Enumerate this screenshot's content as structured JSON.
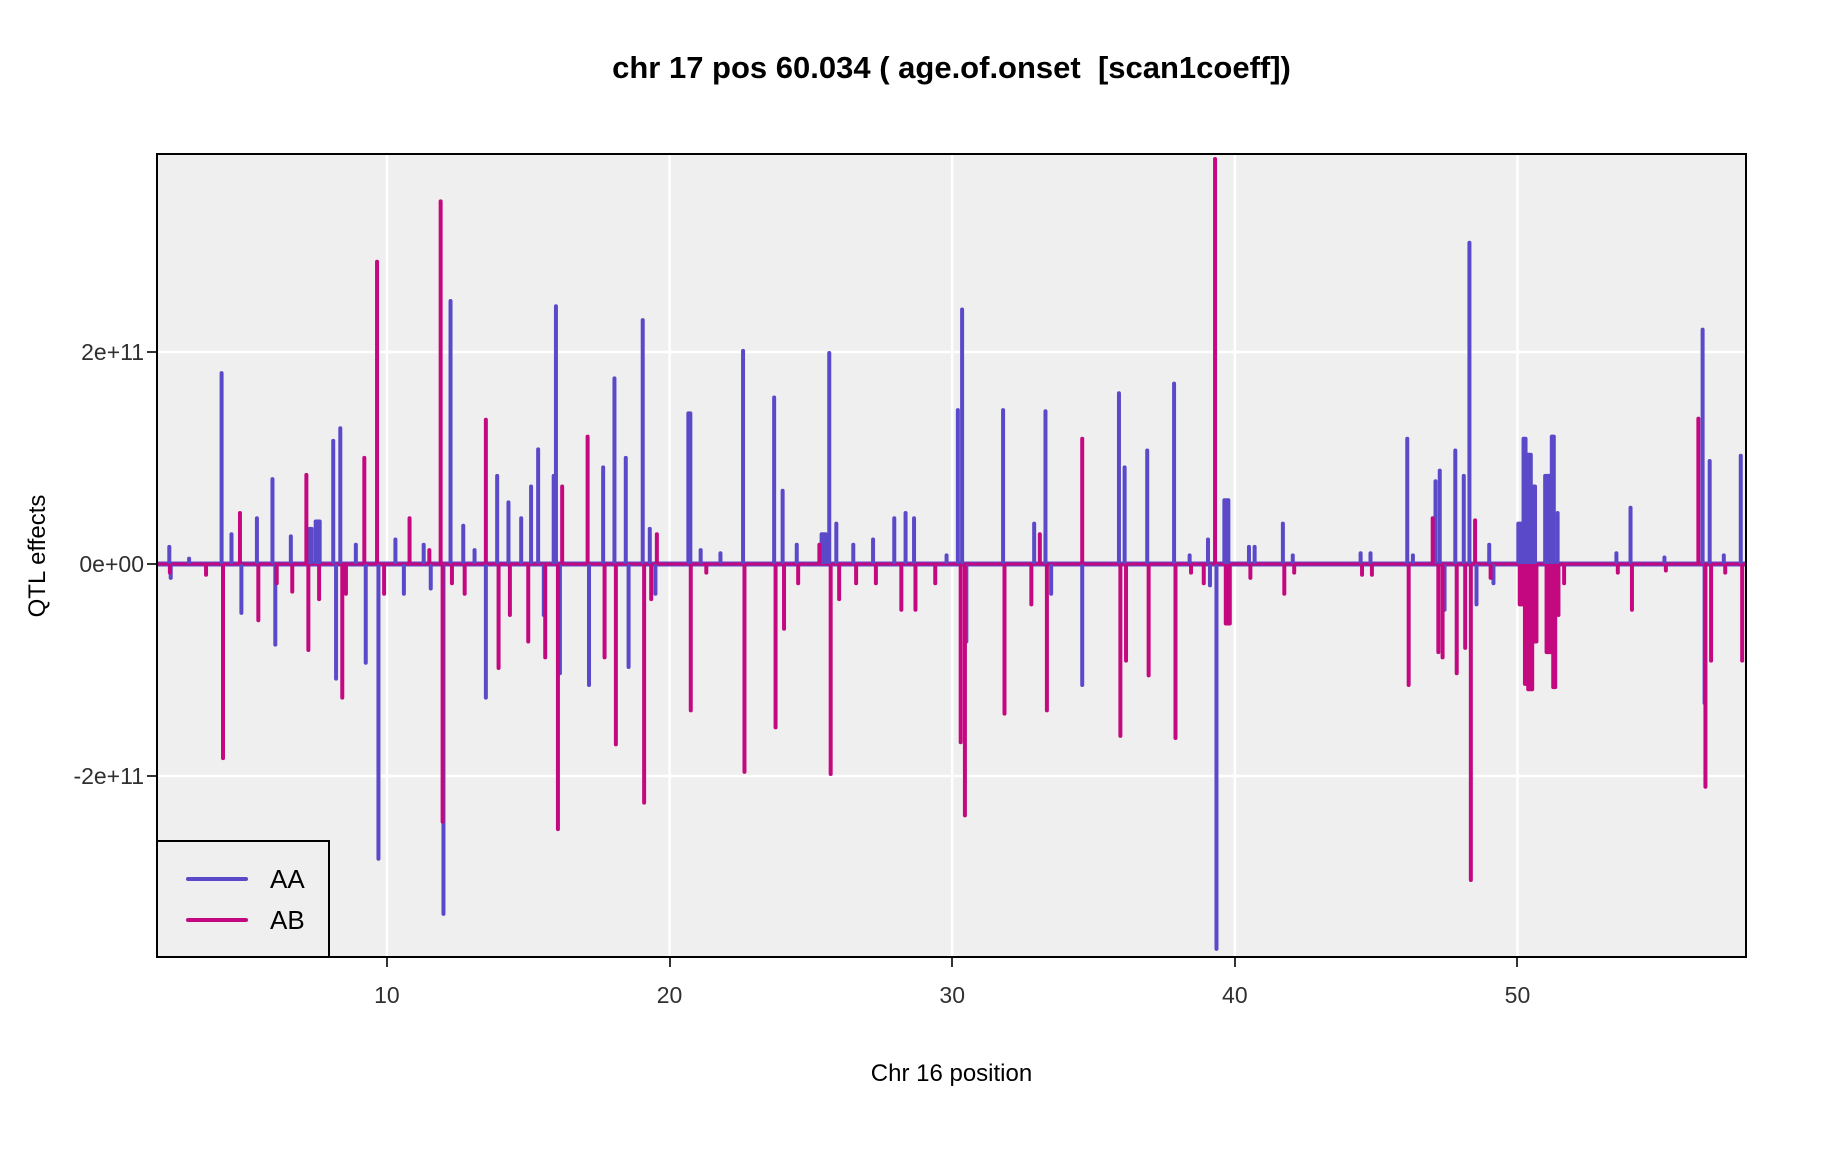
{
  "title": "chr 17 pos 60.034 ( age.of.onset  [scan1coeff])",
  "axes": {
    "x": {
      "label": "Chr 16 position",
      "ticks": [
        "10",
        "20",
        "30",
        "40",
        "50"
      ],
      "tick_values": [
        10,
        20,
        30,
        40,
        50
      ]
    },
    "y": {
      "label": "QTL effects",
      "ticks": [
        "2e+11",
        "0e+00",
        "-2e+11"
      ],
      "tick_values": [
        2,
        0,
        -2
      ]
    }
  },
  "legend": {
    "items": [
      {
        "label": "AA",
        "color": "#5A49C8"
      },
      {
        "label": "AB",
        "color": "#C40980"
      }
    ]
  },
  "colors": {
    "panel_bg": "#EFEFEF",
    "gridline": "#FFFFFF",
    "panel_border": "#000000",
    "aa": "#5A49C8",
    "ab": "#C40980",
    "tick_text": "#303030"
  },
  "chart_data": {
    "type": "line",
    "title": "chr 17 pos 60.034 ( age.of.onset  [scan1coeff])",
    "xlabel": "Chr 16 position",
    "ylabel": "QTL effects",
    "xlim": [
      1.9,
      58.05
    ],
    "ylim": [
      -372000000000.0,
      388000000000.0
    ],
    "y_tick_values": [
      200000000000.0,
      0,
      -200000000000.0
    ],
    "x_tick_values": [
      10,
      20,
      30,
      40,
      50
    ],
    "y_unit_e11": 100000000000.0,
    "grid": "major gridlines only, white on gray panel",
    "legend_position": "bottom-left inside panel",
    "baseline": 0,
    "series": [
      {
        "name": "AA",
        "color": "#5A49C8",
        "spikes_x_value_e11": [
          [
            2.3,
            0.18
          ],
          [
            2.35,
            -0.15
          ],
          [
            3.0,
            0.07
          ],
          [
            4.15,
            1.82
          ],
          [
            4.5,
            0.3
          ],
          [
            4.85,
            -0.48
          ],
          [
            5.4,
            0.45
          ],
          [
            5.95,
            0.82
          ],
          [
            6.05,
            -0.78
          ],
          [
            6.6,
            0.28
          ],
          [
            7.3,
            0.35,
            1.5
          ],
          [
            7.55,
            0.42,
            2
          ],
          [
            8.1,
            1.18
          ],
          [
            8.2,
            -1.1
          ],
          [
            8.35,
            1.3
          ],
          [
            8.9,
            0.2
          ],
          [
            9.25,
            -0.95
          ],
          [
            9.7,
            -2.8
          ],
          [
            10.3,
            0.25
          ],
          [
            10.6,
            -0.3
          ],
          [
            11.3,
            0.2
          ],
          [
            11.55,
            -0.25
          ],
          [
            12.0,
            -3.32
          ],
          [
            12.25,
            2.5
          ],
          [
            12.7,
            0.38
          ],
          [
            13.1,
            0.15
          ],
          [
            13.5,
            -1.28
          ],
          [
            13.9,
            0.85
          ],
          [
            14.3,
            0.6
          ],
          [
            14.75,
            0.45
          ],
          [
            15.1,
            0.75
          ],
          [
            15.35,
            1.1
          ],
          [
            15.55,
            -0.5
          ],
          [
            15.9,
            0.85
          ],
          [
            15.98,
            2.45
          ],
          [
            16.12,
            -1.05
          ],
          [
            17.15,
            -1.16
          ],
          [
            17.65,
            0.93
          ],
          [
            18.05,
            1.77
          ],
          [
            18.45,
            1.02
          ],
          [
            18.55,
            -0.99
          ],
          [
            19.05,
            2.32
          ],
          [
            19.3,
            0.35
          ],
          [
            19.5,
            -0.3
          ],
          [
            20.7,
            1.44,
            1.5
          ],
          [
            21.1,
            0.15
          ],
          [
            21.8,
            0.12
          ],
          [
            22.6,
            2.03
          ],
          [
            23.7,
            1.59
          ],
          [
            24.0,
            0.71
          ],
          [
            24.5,
            0.2
          ],
          [
            25.45,
            0.3,
            2
          ],
          [
            25.65,
            2.01
          ],
          [
            25.9,
            0.4
          ],
          [
            26.5,
            0.2
          ],
          [
            27.2,
            0.25
          ],
          [
            27.95,
            0.45
          ],
          [
            28.35,
            0.5
          ],
          [
            28.65,
            0.45
          ],
          [
            29.8,
            0.1
          ],
          [
            30.2,
            1.47
          ],
          [
            30.35,
            2.42
          ],
          [
            30.5,
            -0.75
          ],
          [
            31.8,
            1.47
          ],
          [
            32.9,
            0.4
          ],
          [
            33.3,
            1.46
          ],
          [
            33.5,
            -0.3
          ],
          [
            34.6,
            -1.16
          ],
          [
            35.9,
            1.63
          ],
          [
            36.1,
            0.93
          ],
          [
            36.9,
            1.09
          ],
          [
            37.85,
            1.72
          ],
          [
            38.4,
            0.1
          ],
          [
            39.05,
            0.25
          ],
          [
            39.12,
            -0.22
          ],
          [
            39.35,
            -3.65
          ],
          [
            39.7,
            0.62,
            2
          ],
          [
            40.5,
            0.18
          ],
          [
            40.7,
            0.18
          ],
          [
            41.7,
            0.4
          ],
          [
            42.05,
            0.1
          ],
          [
            44.45,
            0.12
          ],
          [
            44.8,
            0.12
          ],
          [
            46.1,
            1.2
          ],
          [
            46.3,
            0.1
          ],
          [
            47.1,
            0.8
          ],
          [
            47.25,
            0.9
          ],
          [
            47.42,
            -0.45
          ],
          [
            47.8,
            1.09
          ],
          [
            48.1,
            0.85
          ],
          [
            48.3,
            3.05
          ],
          [
            48.55,
            -0.4
          ],
          [
            49.0,
            0.2
          ],
          [
            49.15,
            -0.2
          ],
          [
            50.1,
            0.4,
            2
          ],
          [
            50.25,
            1.2,
            1.5
          ],
          [
            50.4,
            1.05,
            2
          ],
          [
            50.55,
            0.75,
            2
          ],
          [
            51.05,
            0.85,
            2
          ],
          [
            51.25,
            1.22,
            1.5
          ],
          [
            51.42,
            0.5
          ],
          [
            53.5,
            0.12
          ],
          [
            54.0,
            0.55
          ],
          [
            55.2,
            0.08
          ],
          [
            56.55,
            2.23
          ],
          [
            56.62,
            -1.33
          ],
          [
            56.8,
            0.99
          ],
          [
            57.3,
            0.1
          ],
          [
            57.9,
            1.04
          ]
        ]
      },
      {
        "name": "AB",
        "color": "#C40980",
        "spikes_x_value_e11": [
          [
            2.32,
            -0.1
          ],
          [
            3.6,
            -0.12
          ],
          [
            4.2,
            -1.85
          ],
          [
            4.8,
            0.5
          ],
          [
            5.45,
            -0.55
          ],
          [
            6.1,
            -0.2
          ],
          [
            6.65,
            -0.28
          ],
          [
            7.15,
            0.86
          ],
          [
            7.22,
            -0.83
          ],
          [
            7.6,
            -0.35
          ],
          [
            8.42,
            -1.28
          ],
          [
            8.55,
            -0.3
          ],
          [
            9.2,
            1.02
          ],
          [
            9.65,
            2.87
          ],
          [
            9.9,
            -0.3
          ],
          [
            10.8,
            0.45
          ],
          [
            11.5,
            0.15
          ],
          [
            11.9,
            3.44
          ],
          [
            11.97,
            -2.45
          ],
          [
            12.3,
            -0.2
          ],
          [
            12.75,
            -0.3
          ],
          [
            13.5,
            1.38
          ],
          [
            13.95,
            -1.0
          ],
          [
            14.35,
            -0.5
          ],
          [
            15.0,
            -0.75
          ],
          [
            15.6,
            -0.9
          ],
          [
            16.05,
            -2.52
          ],
          [
            16.2,
            0.75
          ],
          [
            17.1,
            1.22
          ],
          [
            17.7,
            -0.9
          ],
          [
            18.1,
            -1.72
          ],
          [
            19.1,
            -2.27
          ],
          [
            19.35,
            -0.35
          ],
          [
            19.55,
            0.3
          ],
          [
            20.75,
            -1.4
          ],
          [
            21.3,
            -0.1
          ],
          [
            22.65,
            -1.98
          ],
          [
            23.75,
            -1.56
          ],
          [
            24.05,
            -0.63
          ],
          [
            24.55,
            -0.2
          ],
          [
            25.3,
            0.2
          ],
          [
            25.7,
            -2.0
          ],
          [
            26.0,
            -0.35
          ],
          [
            26.6,
            -0.2
          ],
          [
            27.3,
            -0.2
          ],
          [
            28.2,
            -0.45
          ],
          [
            28.7,
            -0.45
          ],
          [
            29.4,
            -0.2
          ],
          [
            30.3,
            -1.7
          ],
          [
            30.45,
            -2.39
          ],
          [
            31.85,
            -1.43
          ],
          [
            32.8,
            -0.4
          ],
          [
            33.1,
            0.3
          ],
          [
            33.35,
            -1.4
          ],
          [
            34.6,
            1.2
          ],
          [
            35.95,
            -1.64
          ],
          [
            36.15,
            -0.93
          ],
          [
            36.95,
            -1.07
          ],
          [
            37.9,
            -1.66
          ],
          [
            38.45,
            -0.1
          ],
          [
            38.9,
            -0.2
          ],
          [
            39.3,
            3.84
          ],
          [
            39.75,
            -0.58,
            2
          ],
          [
            40.55,
            -0.15
          ],
          [
            41.75,
            -0.3
          ],
          [
            42.1,
            -0.1
          ],
          [
            44.5,
            -0.12
          ],
          [
            44.85,
            -0.12
          ],
          [
            46.15,
            -1.16
          ],
          [
            47.0,
            0.45
          ],
          [
            47.2,
            -0.85
          ],
          [
            47.35,
            -0.9
          ],
          [
            47.85,
            -1.05
          ],
          [
            48.15,
            -0.81
          ],
          [
            48.35,
            -3.0
          ],
          [
            48.5,
            0.43
          ],
          [
            49.05,
            -0.15
          ],
          [
            50.15,
            -0.4,
            2
          ],
          [
            50.3,
            -1.15,
            1.5
          ],
          [
            50.45,
            -1.2,
            2
          ],
          [
            50.6,
            -0.75,
            2
          ],
          [
            51.1,
            -0.85,
            2
          ],
          [
            51.3,
            -1.18,
            1.5
          ],
          [
            51.45,
            -0.5
          ],
          [
            51.65,
            -0.2
          ],
          [
            53.55,
            -0.1
          ],
          [
            54.05,
            -0.45
          ],
          [
            55.25,
            -0.08
          ],
          [
            56.4,
            1.39
          ],
          [
            56.65,
            -2.12
          ],
          [
            56.85,
            -0.93
          ],
          [
            57.35,
            -0.1
          ],
          [
            57.95,
            -0.93
          ]
        ]
      }
    ]
  }
}
